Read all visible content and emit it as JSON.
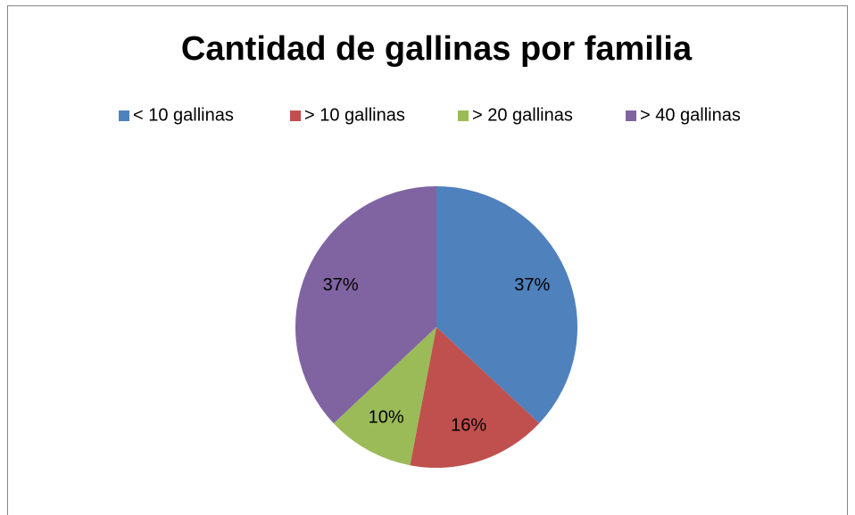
{
  "chart_data": {
    "type": "pie",
    "title": "Cantidad de gallinas por familia",
    "categories": [
      "< 10 gallinas",
      "> 10 gallinas",
      "> 20 gallinas",
      "> 40 gallinas"
    ],
    "values": [
      37,
      16,
      10,
      37
    ],
    "value_labels": [
      "37%",
      "16%",
      "10%",
      "37%"
    ],
    "colors": [
      "#4f81bd",
      "#c0504d",
      "#9bbb59",
      "#8064a2"
    ],
    "legend": "top"
  }
}
